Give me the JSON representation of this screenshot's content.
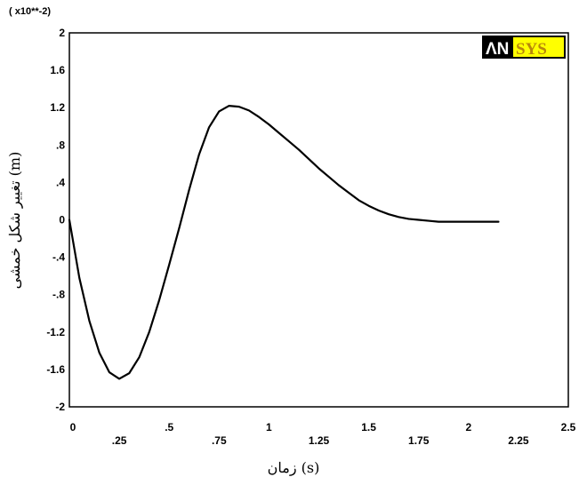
{
  "chart_data": {
    "type": "line",
    "exponent_label": "( x10**-2)",
    "xlabel": "زمان (s)",
    "ylabel": "تغییر شکل خمشی (m)",
    "logo": {
      "part1": "ΛN",
      "part2": "SYS"
    },
    "xlim": [
      0,
      2.5
    ],
    "ylim": [
      -2,
      2
    ],
    "x_ticks_upper": [
      "0",
      ".5",
      "1",
      "1.5",
      "2",
      "2.5"
    ],
    "x_ticks_lower": [
      ".25",
      ".75",
      "1.25",
      "1.75",
      "2.25"
    ],
    "y_ticks": [
      "2",
      "1.6",
      "1.2",
      ".8",
      ".4",
      "0",
      "-.4",
      "-.8",
      "-1.2",
      "-1.6",
      "-2"
    ],
    "grid": false,
    "series": [
      {
        "x": [
          0,
          0.05,
          0.1,
          0.15,
          0.2,
          0.25,
          0.3,
          0.35,
          0.4,
          0.45,
          0.5,
          0.55,
          0.6,
          0.65,
          0.7,
          0.75,
          0.8,
          0.85,
          0.9,
          0.95,
          1.0,
          1.05,
          1.1,
          1.15,
          1.2,
          1.25,
          1.3,
          1.35,
          1.4,
          1.45,
          1.5,
          1.55,
          1.6,
          1.65,
          1.7,
          1.75,
          1.8,
          1.85,
          1.9,
          1.95,
          2.0,
          2.05,
          2.1,
          2.15
        ],
        "values": [
          0.0,
          -0.62,
          -1.08,
          -1.42,
          -1.63,
          -1.7,
          -1.64,
          -1.47,
          -1.2,
          -0.86,
          -0.48,
          -0.09,
          0.32,
          0.7,
          0.99,
          1.16,
          1.22,
          1.21,
          1.17,
          1.1,
          1.02,
          0.93,
          0.84,
          0.75,
          0.65,
          0.55,
          0.46,
          0.37,
          0.29,
          0.21,
          0.15,
          0.1,
          0.06,
          0.03,
          0.01,
          0.0,
          -0.01,
          -0.02,
          -0.02,
          -0.02,
          -0.02,
          -0.02,
          -0.02,
          -0.02
        ]
      }
    ]
  }
}
